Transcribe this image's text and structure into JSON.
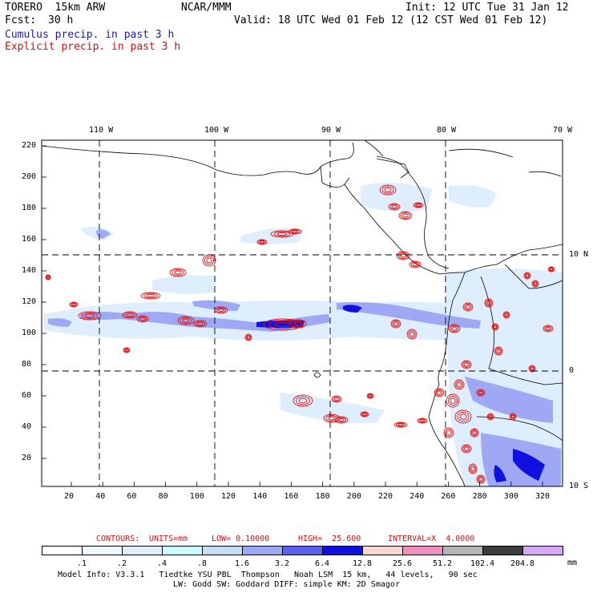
{
  "header": {
    "model": "TORERO  15km ARW",
    "center": "NCAR/MMM",
    "init": "Init: 12 UTC Tue 31 Jan 12",
    "fcst_label": "Fcst:",
    "fcst_value": "30 h",
    "valid": "Valid: 18 UTC Wed 01 Feb 12 (12 CST Wed 01 Feb 12)",
    "line_cumulus": "Cumulus precip. in past 3 h",
    "line_explicit": "Explicit precip. in past 3 h"
  },
  "map": {
    "lon_labels": [
      "110 W",
      "100 W",
      "90 W",
      "80 W",
      "70 W"
    ],
    "lat_labels": [
      "10 N",
      "0",
      "10 S"
    ],
    "y_ticks": [
      "220",
      "200",
      "180",
      "160",
      "140",
      "120",
      "100",
      "80",
      "60",
      "40",
      "20"
    ],
    "x_ticks": [
      "20",
      "40",
      "60",
      "80",
      "100",
      "120",
      "140",
      "160",
      "180",
      "200",
      "220",
      "240",
      "260",
      "280",
      "300",
      "320"
    ]
  },
  "contours_line": {
    "label": "CONTOURS:",
    "units": "UNITS=mm",
    "low": "LOW= 0.10000",
    "high": "HIGH=  25.600",
    "interval": "INTERVAL=X  4.0000"
  },
  "colorbar": {
    "labels": [
      ".1",
      ".2",
      ".4",
      ".8",
      "1.6",
      "3.2",
      "6.4",
      "12.8",
      "25.6",
      "51.2",
      "102.4",
      "204.8"
    ],
    "unit": "mm",
    "colors": [
      "#ffffff",
      "#eef6fe",
      "#dfeefe",
      "#ccfcff",
      "#c7dcf7",
      "#9fa8f5",
      "#5861f0",
      "#1010e0",
      "#f7d6d6",
      "#f08fbd",
      "#b4b4b4",
      "#3c3c3c",
      "#d7a8f8"
    ]
  },
  "footer": {
    "line1": "Model Info: V3.3.1   Tiedtke YSU PBL  Thompson   Noah LSM  15 km,   44 levels,   90 sec",
    "line2": "LW: Godd SW: Goddard DIFF: simple KM: 2D Smagor"
  }
}
